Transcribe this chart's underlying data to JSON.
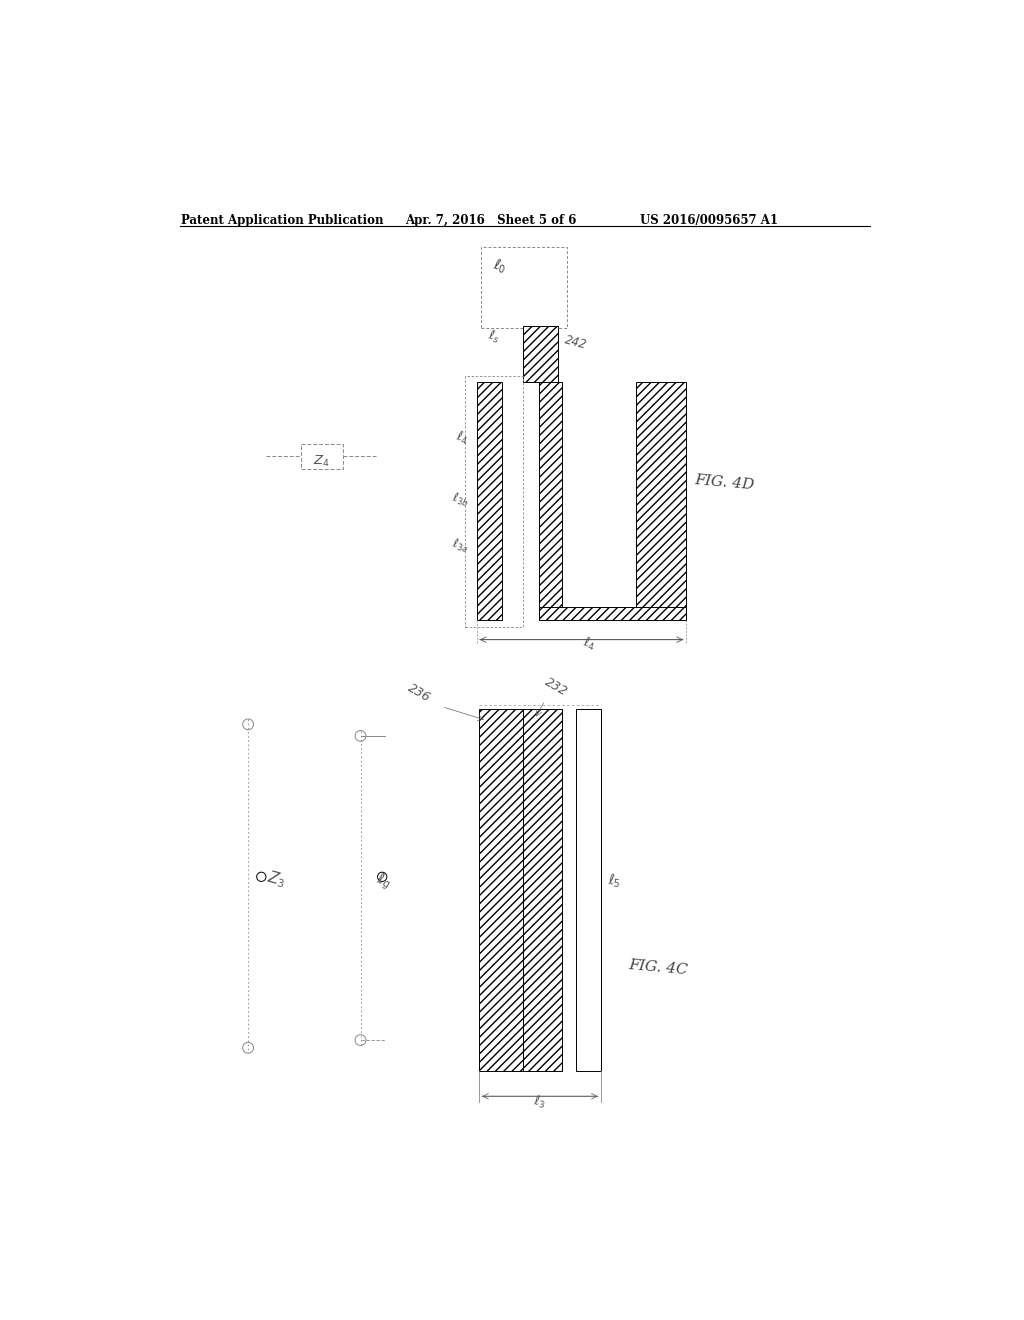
{
  "bg_color": "#ffffff",
  "header_left": "Patent Application Publication",
  "header_mid": "Apr. 7, 2016   Sheet 5 of 6",
  "header_right": "US 2016/0095657 A1",
  "hatch_pattern": "////",
  "line_color": "#000000"
}
